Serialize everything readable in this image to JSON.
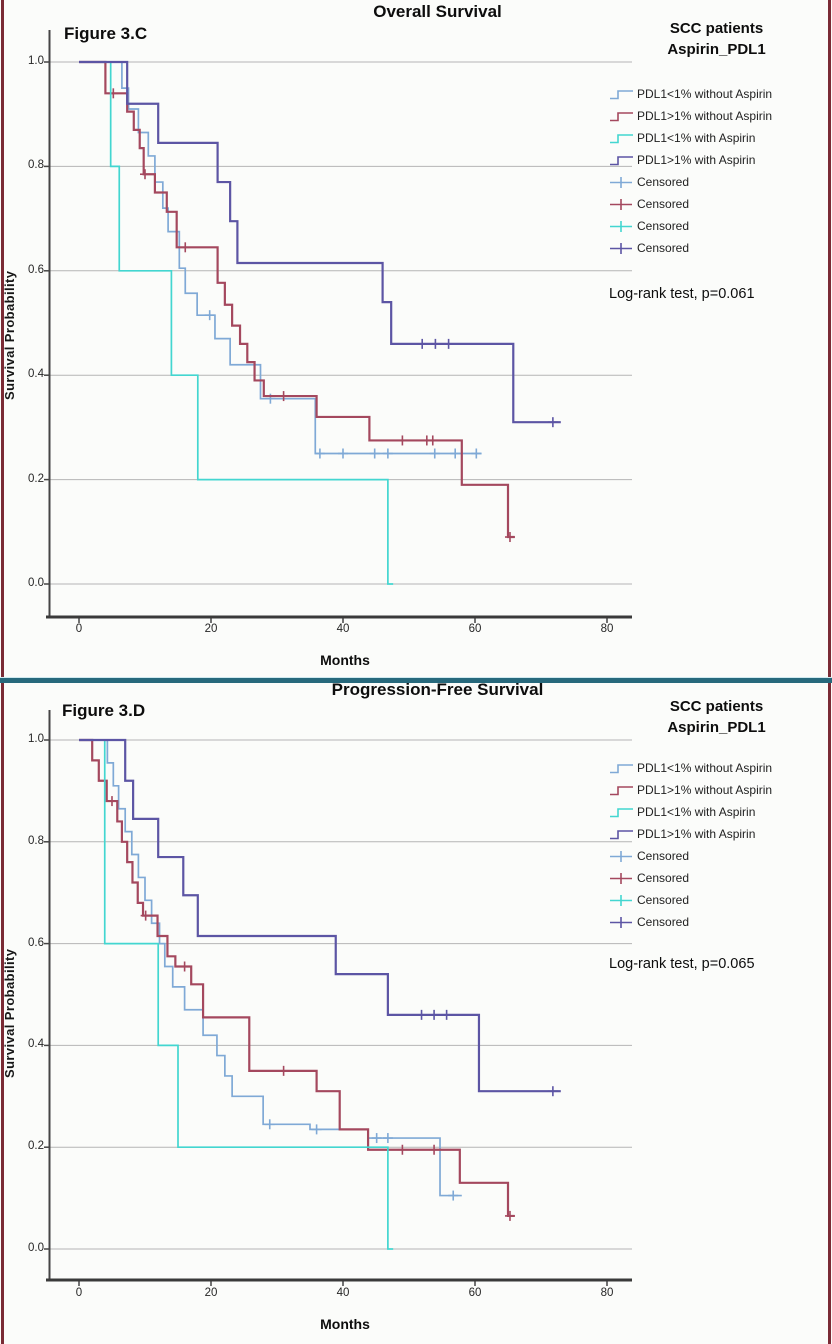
{
  "frame": {
    "side_border_color": "#7a2b35",
    "separator_color": "#27697c",
    "grid_color": "#b5b5b5",
    "axis_color": "#454545"
  },
  "chart_data": [
    {
      "type": "line",
      "subtype": "kaplan-meier-step",
      "figure_label": "Figure 3.C",
      "title": "Overall Survival",
      "xlabel": "Months",
      "ylabel": "Survival Probability",
      "legend_title": "SCC patients",
      "legend_subtitle": "Aspirin_PDL1",
      "censored_label": "Censored",
      "stat_note": "Log-rank test, p=0.061",
      "x_ticks": [
        "0",
        "20",
        "40",
        "60",
        "80"
      ],
      "y_ticks": [
        "1.0",
        "0.8",
        "0.6",
        "0.4",
        "0.2",
        "0.0"
      ],
      "xlim": [
        0,
        84
      ],
      "ylim": [
        0.0,
        1.0
      ],
      "grid": true,
      "legend_position": "right",
      "series": [
        {
          "name": "PDL1<1% without Aspirin",
          "color": "#7FA9D6",
          "steps": [
            [
              0,
              1.0
            ],
            [
              6.5,
              0.95
            ],
            [
              7.5,
              0.91
            ],
            [
              9,
              0.865
            ],
            [
              10.5,
              0.82
            ],
            [
              11.5,
              0.77
            ],
            [
              12.7,
              0.72
            ],
            [
              13.5,
              0.675
            ],
            [
              15.2,
              0.605
            ],
            [
              16.1,
              0.557
            ],
            [
              17.9,
              0.515
            ],
            [
              20.6,
              0.47
            ],
            [
              22.9,
              0.42
            ],
            [
              27.5,
              0.355
            ],
            [
              35.8,
              0.25
            ]
          ],
          "end": 61,
          "censors": [
            [
              19.8,
              0.515
            ],
            [
              29,
              0.355
            ],
            [
              36.5,
              0.25
            ],
            [
              40,
              0.25
            ],
            [
              44.8,
              0.25
            ],
            [
              46.8,
              0.25
            ],
            [
              53.9,
              0.25
            ],
            [
              57,
              0.25
            ],
            [
              60.2,
              0.25
            ]
          ]
        },
        {
          "name": "PDL1>1% without Aspirin",
          "color": "#A4485E",
          "steps": [
            [
              0,
              1.0
            ],
            [
              4,
              0.94
            ],
            [
              7.3,
              0.905
            ],
            [
              8.3,
              0.87
            ],
            [
              9.2,
              0.835
            ],
            [
              9.8,
              0.785
            ],
            [
              11.5,
              0.75
            ],
            [
              13.3,
              0.713
            ],
            [
              14.8,
              0.645
            ],
            [
              21,
              0.577
            ],
            [
              22.1,
              0.535
            ],
            [
              23.2,
              0.495
            ],
            [
              24.4,
              0.46
            ],
            [
              25.5,
              0.425
            ],
            [
              26.6,
              0.39
            ],
            [
              28,
              0.36
            ],
            [
              36,
              0.32
            ],
            [
              44,
              0.275
            ],
            [
              58,
              0.19
            ],
            [
              65,
              0.09
            ]
          ],
          "end": 66,
          "censors": [
            [
              5.2,
              0.94
            ],
            [
              10,
              0.785
            ],
            [
              16.1,
              0.645
            ],
            [
              31,
              0.36
            ],
            [
              49,
              0.275
            ],
            [
              52.7,
              0.275
            ],
            [
              53.6,
              0.275
            ],
            [
              65.3,
              0.09
            ]
          ]
        },
        {
          "name": "PDL1<1% with Aspirin",
          "color": "#43D6D0",
          "steps": [
            [
              0,
              1.0
            ],
            [
              4.8,
              0.8
            ],
            [
              6.1,
              0.6
            ],
            [
              14,
              0.4
            ],
            [
              18,
              0.2
            ],
            [
              46.8,
              0.0
            ]
          ],
          "end": 47.6,
          "censors": []
        },
        {
          "name": "PDL1>1% with Aspirin",
          "color": "#5C55A4",
          "steps": [
            [
              0,
              1.0
            ],
            [
              7.3,
              0.92
            ],
            [
              12,
              0.845
            ],
            [
              21,
              0.77
            ],
            [
              22.9,
              0.695
            ],
            [
              24,
              0.615
            ],
            [
              46,
              0.54
            ],
            [
              47.3,
              0.46
            ],
            [
              65.8,
              0.31
            ]
          ],
          "end": 73,
          "censors": [
            [
              52,
              0.46
            ],
            [
              54,
              0.46
            ],
            [
              56,
              0.46
            ],
            [
              71.8,
              0.31
            ]
          ]
        }
      ]
    },
    {
      "type": "line",
      "subtype": "kaplan-meier-step",
      "figure_label": "Figure 3.D",
      "title": "Progression-Free Survival",
      "xlabel": "Months",
      "ylabel": "Survival Probability",
      "legend_title": "SCC patients",
      "legend_subtitle": "Aspirin_PDL1",
      "censored_label": "Censored",
      "stat_note": "Log-rank test, p=0.065",
      "x_ticks": [
        "0",
        "20",
        "40",
        "60",
        "80"
      ],
      "y_ticks": [
        "1.0",
        "0.8",
        "0.6",
        "0.4",
        "0.2",
        "0.0"
      ],
      "xlim": [
        0,
        84
      ],
      "ylim": [
        0.0,
        1.0
      ],
      "grid": true,
      "legend_position": "right",
      "series": [
        {
          "name": "PDL1<1% without Aspirin",
          "color": "#7FA9D6",
          "steps": [
            [
              0,
              1.0
            ],
            [
              4.3,
              0.955
            ],
            [
              5.2,
              0.91
            ],
            [
              6,
              0.865
            ],
            [
              7,
              0.82
            ],
            [
              8,
              0.775
            ],
            [
              9,
              0.73
            ],
            [
              10,
              0.685
            ],
            [
              11,
              0.64
            ],
            [
              12.2,
              0.6
            ],
            [
              13,
              0.555
            ],
            [
              14.2,
              0.515
            ],
            [
              16,
              0.47
            ],
            [
              18.8,
              0.42
            ],
            [
              20.9,
              0.38
            ],
            [
              22.1,
              0.34
            ],
            [
              23.2,
              0.3
            ],
            [
              27.9,
              0.245
            ],
            [
              35,
              0.235
            ],
            [
              43.8,
              0.218
            ],
            [
              54.7,
              0.105
            ]
          ],
          "end": 58,
          "censors": [
            [
              28.9,
              0.245
            ],
            [
              36,
              0.235
            ],
            [
              45.1,
              0.218
            ],
            [
              46.8,
              0.218
            ],
            [
              56.7,
              0.105
            ]
          ]
        },
        {
          "name": "PDL1>1% without Aspirin",
          "color": "#A4485E",
          "steps": [
            [
              0,
              1.0
            ],
            [
              2,
              0.96
            ],
            [
              3,
              0.92
            ],
            [
              4.2,
              0.88
            ],
            [
              5.8,
              0.84
            ],
            [
              6.5,
              0.8
            ],
            [
              7.3,
              0.76
            ],
            [
              8.1,
              0.72
            ],
            [
              8.9,
              0.68
            ],
            [
              9.7,
              0.655
            ],
            [
              11.9,
              0.615
            ],
            [
              13.4,
              0.575
            ],
            [
              14.6,
              0.555
            ],
            [
              17,
              0.52
            ],
            [
              18.8,
              0.455
            ],
            [
              25.8,
              0.35
            ],
            [
              36,
              0.31
            ],
            [
              39.5,
              0.235
            ],
            [
              43.8,
              0.195
            ],
            [
              57.7,
              0.13
            ],
            [
              65,
              0.065
            ]
          ],
          "end": 66,
          "censors": [
            [
              5,
              0.88
            ],
            [
              10.1,
              0.655
            ],
            [
              16,
              0.555
            ],
            [
              31,
              0.35
            ],
            [
              49,
              0.195
            ],
            [
              53.8,
              0.195
            ],
            [
              65.3,
              0.065
            ]
          ]
        },
        {
          "name": "PDL1<1% with Aspirin",
          "color": "#43D6D0",
          "steps": [
            [
              0,
              1.0
            ],
            [
              3.9,
              0.6
            ],
            [
              12,
              0.4
            ],
            [
              15,
              0.2
            ],
            [
              46.8,
              0.0
            ]
          ],
          "end": 47.6,
          "censors": []
        },
        {
          "name": "PDL1>1% with Aspirin",
          "color": "#5C55A4",
          "steps": [
            [
              0,
              1.0
            ],
            [
              7,
              0.92
            ],
            [
              8.2,
              0.845
            ],
            [
              12,
              0.77
            ],
            [
              15.8,
              0.695
            ],
            [
              18,
              0.615
            ],
            [
              38.9,
              0.54
            ],
            [
              46.8,
              0.46
            ],
            [
              60.6,
              0.31
            ]
          ],
          "end": 73,
          "censors": [
            [
              51.9,
              0.46
            ],
            [
              53.8,
              0.46
            ],
            [
              55.7,
              0.46
            ],
            [
              71.8,
              0.31
            ]
          ]
        }
      ]
    }
  ]
}
